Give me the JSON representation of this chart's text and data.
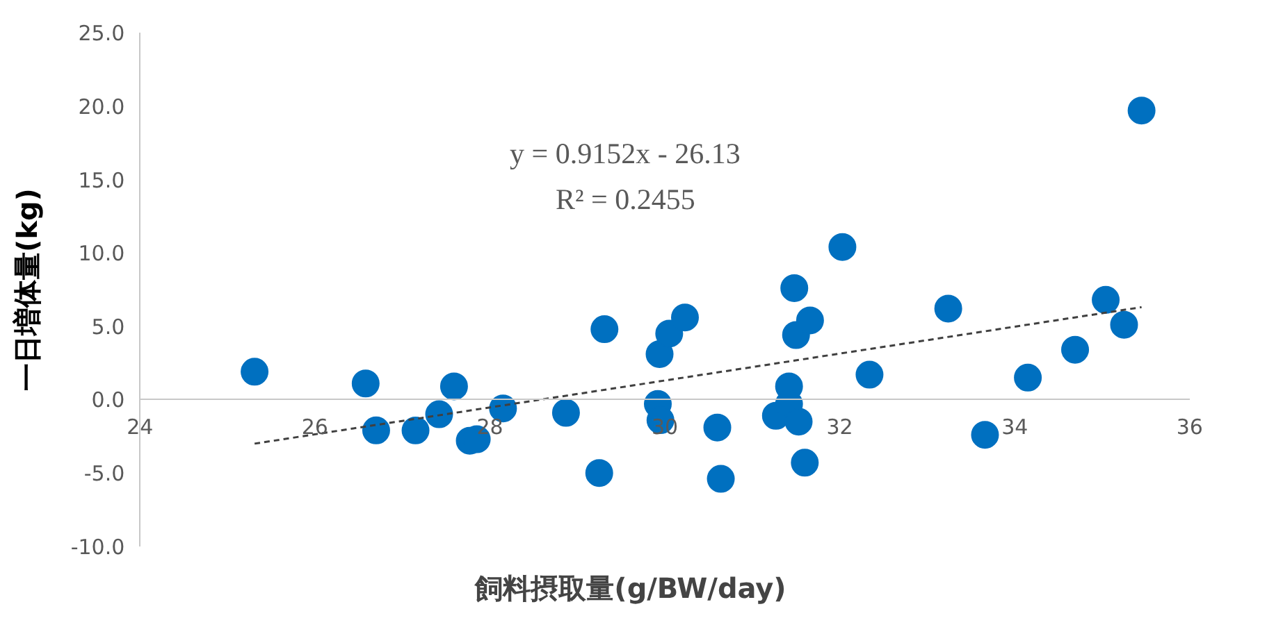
{
  "chart_data": {
    "type": "scatter",
    "xlabel": "飼料摂取量(g/BW/day)",
    "ylabel": "一日増体量(kg)",
    "annotations": [
      "y = 0.9152x - 26.13",
      "R² = 0.2455"
    ],
    "xlim": [
      24,
      36
    ],
    "ylim": [
      -10,
      25
    ],
    "xticks": [
      24,
      26,
      28,
      30,
      32,
      34,
      36
    ],
    "yticks": [
      {
        "value": -10,
        "label": "-10.0"
      },
      {
        "value": -5,
        "label": "-5.0"
      },
      {
        "value": 0,
        "label": "0.0"
      },
      {
        "value": 5,
        "label": "5.0"
      },
      {
        "value": 10,
        "label": "10.0"
      },
      {
        "value": 15,
        "label": "15.0"
      },
      {
        "value": 20,
        "label": "20.0"
      },
      {
        "value": 25,
        "label": "25.0"
      }
    ],
    "grid": false,
    "marker": "circle",
    "series": [
      {
        "color": "#0070c0",
        "x": [
          25.31,
          26.58,
          26.7,
          27.15,
          27.42,
          27.59,
          27.77,
          27.85,
          28.15,
          28.87,
          29.25,
          29.31,
          29.92,
          29.94,
          29.95,
          30.05,
          30.23,
          30.6,
          30.64,
          31.27,
          31.42,
          31.42,
          31.48,
          31.5,
          31.53,
          31.6,
          31.66,
          32.03,
          32.34,
          33.24,
          33.66,
          34.15,
          34.69,
          35.04,
          35.25,
          35.45
        ],
        "values": [
          1.9,
          1.1,
          -2.1,
          -2.1,
          -1.0,
          0.9,
          -2.8,
          -2.7,
          -0.6,
          -0.9,
          -5.0,
          4.8,
          -0.3,
          3.1,
          -1.4,
          4.5,
          5.6,
          -1.9,
          -5.4,
          -1.1,
          0.9,
          -0.3,
          7.6,
          4.4,
          -1.5,
          -4.3,
          5.4,
          10.4,
          1.7,
          6.2,
          -2.4,
          1.5,
          3.4,
          6.8,
          5.1,
          19.7
        ]
      },
      {
        "type": "line",
        "line_style": "dashed",
        "marker": "none",
        "color": "#404040",
        "x": [
          25.31,
          35.45
        ],
        "values": [
          -3.0,
          6.3
        ]
      }
    ]
  }
}
